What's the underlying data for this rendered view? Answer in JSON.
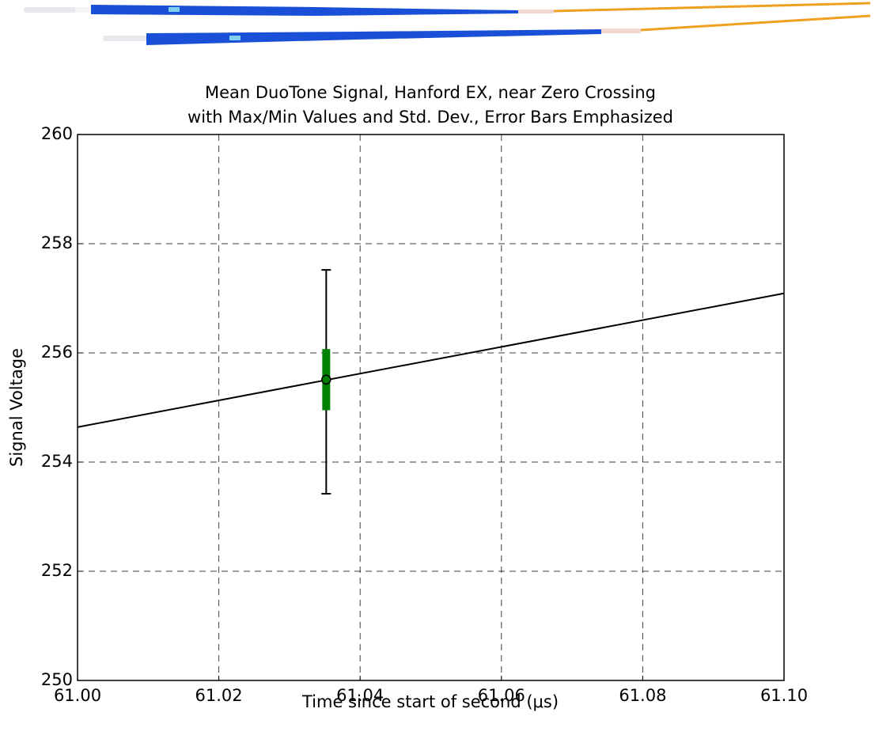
{
  "chart_data": {
    "type": "errorbar",
    "title": [
      "Mean DuoTone Signal, Hanford EX, near Zero Crossing",
      "with Max/Min Values and Std. Dev., Error Bars Emphasized"
    ],
    "x_label": "Time since start of second (μs)",
    "y_label": "Signal Voltage",
    "xlim": [
      61.0,
      61.1
    ],
    "ylim": [
      250,
      260
    ],
    "xticks": [
      {
        "value": 61.0,
        "label": "61.00"
      },
      {
        "value": 61.02,
        "label": "61.02"
      },
      {
        "value": 61.04,
        "label": "61.04"
      },
      {
        "value": 61.06,
        "label": "61.06"
      },
      {
        "value": 61.08,
        "label": "61.08"
      },
      {
        "value": 61.1,
        "label": "61.10"
      }
    ],
    "yticks": [
      250,
      252,
      254,
      256,
      258,
      260
    ],
    "grid": true,
    "line": {
      "color": "#000000",
      "x": [
        61.0,
        61.1
      ],
      "values": [
        254.64,
        257.09
      ]
    },
    "point": {
      "x": 61.0352,
      "mean": 255.51,
      "min": 253.42,
      "max": 257.52,
      "std": 0.56,
      "color": "#008000",
      "whisker_color": "#000000"
    }
  }
}
